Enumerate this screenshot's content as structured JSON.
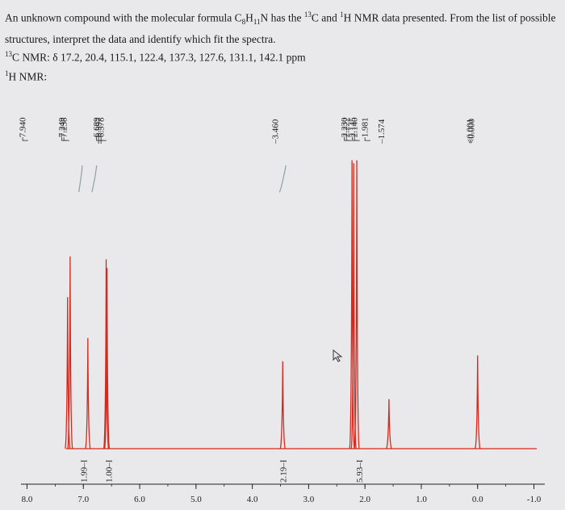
{
  "question": {
    "line1_a": "An unknown compound with the molecular formula C",
    "c_sub": "8",
    "h_letter": "H",
    "h_sub": "11",
    "line1_b": "N has the ",
    "c13_sup": "13",
    "line1_c": "C and ",
    "h1_sup": "1",
    "line1_d": "H NMR data presented. From the list of possible",
    "line2": "structures, interpret the data and identify which fit the spectra."
  },
  "c13": {
    "sup": "13",
    "text": "C NMR: δ 17.2, 20.4, 115.1, 122.4, 137.3, 127.6, 131.1, 142.1 ppm"
  },
  "h1": {
    "sup": "1",
    "text": "H NMR:"
  },
  "chart_data": {
    "type": "line",
    "xlabel": "",
    "ylabel": "",
    "x_ticks": [
      {
        "value": 8.0,
        "label": "8.0"
      },
      {
        "value": 7.0,
        "label": "7.0"
      },
      {
        "value": 6.0,
        "label": "6.0"
      },
      {
        "value": 5.0,
        "label": "5.0"
      },
      {
        "value": 4.0,
        "label": "4.0"
      },
      {
        "value": 3.0,
        "label": "3.0"
      },
      {
        "value": 2.0,
        "label": "2.0"
      },
      {
        "value": 1.0,
        "label": "1.0"
      },
      {
        "value": 0.0,
        "label": "0.0"
      },
      {
        "value": -1.0,
        "label": "-1.0"
      }
    ],
    "xlim": [
      8.05,
      -1.05
    ],
    "ylim": [
      0,
      1
    ],
    "spectrum_color": "#d42a1e",
    "integral_color": "#d42a1e",
    "peaks": [
      {
        "ppm": 7.28,
        "height": 0.52
      },
      {
        "ppm": 7.235,
        "height": 0.66
      },
      {
        "ppm": 6.92,
        "height": 0.38
      },
      {
        "ppm": 6.595,
        "height": 0.65
      },
      {
        "ppm": 6.58,
        "height": 0.62
      },
      {
        "ppm": 3.46,
        "height": 0.3
      },
      {
        "ppm": 2.23,
        "height": 0.99
      },
      {
        "ppm": 2.2,
        "height": 0.98
      },
      {
        "ppm": 2.145,
        "height": 0.99
      },
      {
        "ppm": 1.574,
        "height": 0.17
      },
      {
        "ppm": 0.0,
        "height": 0.32
      }
    ],
    "peak_labels": [
      {
        "group": [
          7.249,
          7.238,
          6.689
        ],
        "labels": [
          "7.249",
          "7.238",
          "6.689"
        ],
        "bracket": "┌"
      },
      {
        "group": [
          7.94
        ],
        "labels": [
          "7.940"
        ],
        "bracket": "┌"
      },
      {
        "group": [
          6.597,
          6.578
        ],
        "labels": [
          "6.597",
          "6.578"
        ],
        "bracket": "┬"
      },
      {
        "group": [
          3.46
        ],
        "labels": [
          "3.460"
        ],
        "bracket": "–"
      },
      {
        "group": [
          2.23,
          2.222,
          2.145,
          2.14,
          1.981
        ],
        "labels": [
          "2.230",
          "2.222",
          "2.145",
          "2.140",
          "1.981"
        ],
        "bracket": "┌"
      },
      {
        "group": [
          1.574
        ],
        "labels": [
          "1.574"
        ],
        "bracket": "–"
      },
      {
        "group": [
          0.001,
          0.0
        ],
        "labels": [
          "0.001",
          "0.000"
        ],
        "bracket": "<"
      }
    ],
    "integrals": [
      {
        "ppm": 7.0,
        "value": "1.99"
      },
      {
        "ppm": 6.55,
        "value": "1.00"
      },
      {
        "ppm": 3.46,
        "value": "2.19"
      },
      {
        "ppm": 2.1,
        "value": "5.93"
      }
    ]
  }
}
